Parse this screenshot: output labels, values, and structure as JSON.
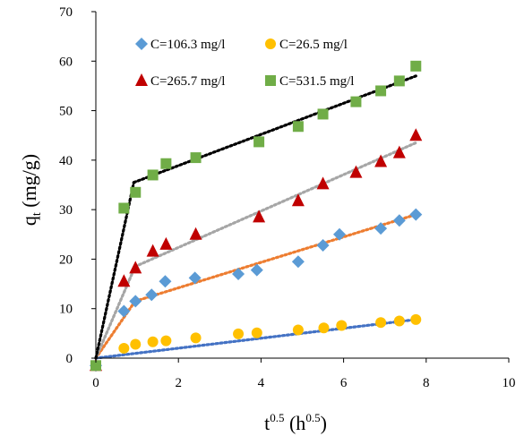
{
  "chart_data": {
    "type": "scatter",
    "title": "",
    "xlabel": "t0.5 (h0.5)",
    "xlabel_parts": {
      "base": "t",
      "sup": "0.5",
      "mid": " (h",
      "sup2": "0.5",
      "end": ")"
    },
    "ylabel": "qt (mg/g)",
    "ylabel_parts": {
      "base": "q",
      "sub": "t",
      "rest": " (mg/g)"
    },
    "xlim": [
      0,
      10
    ],
    "ylim": [
      0,
      70
    ],
    "xticks": [
      "0",
      "2",
      "4",
      "6",
      "8",
      "10"
    ],
    "yticks": [
      "0",
      "10",
      "20",
      "30",
      "40",
      "50",
      "60",
      "70"
    ],
    "grid": false,
    "legend_position": "top-left inside",
    "series": [
      {
        "name": "C=106.3 mg/l",
        "marker": "diamond",
        "color": "#5B9BD5",
        "line_color": "#ED7D31",
        "points": [
          [
            0,
            -1.5
          ],
          [
            0.68,
            9.5
          ],
          [
            0.96,
            11.5
          ],
          [
            1.35,
            12.8
          ],
          [
            1.68,
            15.5
          ],
          [
            2.4,
            16.2
          ],
          [
            3.45,
            17
          ],
          [
            3.9,
            17.8
          ],
          [
            4.9,
            19.5
          ],
          [
            5.5,
            22.8
          ],
          [
            5.9,
            25
          ],
          [
            6.9,
            26.2
          ],
          [
            7.35,
            27.8
          ],
          [
            7.75,
            29
          ]
        ],
        "trendlines": [
          [
            [
              0,
              0
            ],
            [
              0.95,
              11.5
            ]
          ],
          [
            [
              0.95,
              11.5
            ],
            [
              7.75,
              29
            ]
          ]
        ]
      },
      {
        "name": "C=26.5 mg/l",
        "marker": "circle",
        "color": "#FFC000",
        "line_color": "#4472C4",
        "points": [
          [
            0,
            -1.5
          ],
          [
            0.68,
            2
          ],
          [
            0.96,
            2.8
          ],
          [
            1.38,
            3.3
          ],
          [
            1.7,
            3.5
          ],
          [
            2.42,
            4.1
          ],
          [
            3.45,
            4.9
          ],
          [
            3.9,
            5.1
          ],
          [
            4.9,
            5.7
          ],
          [
            5.52,
            6.1
          ],
          [
            5.95,
            6.6
          ],
          [
            6.9,
            7.2
          ],
          [
            7.35,
            7.5
          ],
          [
            7.75,
            7.8
          ]
        ],
        "trendlines": [
          [
            [
              0,
              0
            ],
            [
              7.75,
              7.8
            ]
          ]
        ]
      },
      {
        "name": "C=265.7 mg/l",
        "marker": "triangle",
        "color": "#C00000",
        "line_color": "#A6A6A6",
        "points": [
          [
            0,
            -1.5
          ],
          [
            0.68,
            15.5
          ],
          [
            0.96,
            18.2
          ],
          [
            1.38,
            21.6
          ],
          [
            1.7,
            23
          ],
          [
            2.42,
            25
          ],
          [
            3.45,
            null
          ],
          [
            3.95,
            28.5
          ],
          [
            4.9,
            31.8
          ],
          [
            5.5,
            35.2
          ],
          [
            6.3,
            37.5
          ],
          [
            6.9,
            39.7
          ],
          [
            7.35,
            41.5
          ],
          [
            7.75,
            45
          ]
        ],
        "trendlines": [
          [
            [
              0,
              0
            ],
            [
              0.95,
              18.5
            ]
          ],
          [
            [
              0.95,
              18.5
            ],
            [
              7.75,
              43.5
            ]
          ]
        ]
      },
      {
        "name": "C=531.5 mg/l",
        "marker": "square",
        "color": "#70AD47",
        "line_color": "#000000",
        "points": [
          [
            0,
            -1.5
          ],
          [
            0.68,
            30.3
          ],
          [
            0.96,
            33.5
          ],
          [
            1.38,
            37
          ],
          [
            1.7,
            39.3
          ],
          [
            2.42,
            40.5
          ],
          [
            3.95,
            43.7
          ],
          [
            4.9,
            46.8
          ],
          [
            5.5,
            49.3
          ],
          [
            6.3,
            51.8
          ],
          [
            6.9,
            54
          ],
          [
            7.35,
            56
          ],
          [
            7.75,
            59
          ]
        ],
        "trendlines": [
          [
            [
              0,
              0
            ],
            [
              0.92,
              35.5
            ]
          ],
          [
            [
              0.92,
              35.5
            ],
            [
              7.75,
              57
            ]
          ]
        ]
      }
    ]
  }
}
